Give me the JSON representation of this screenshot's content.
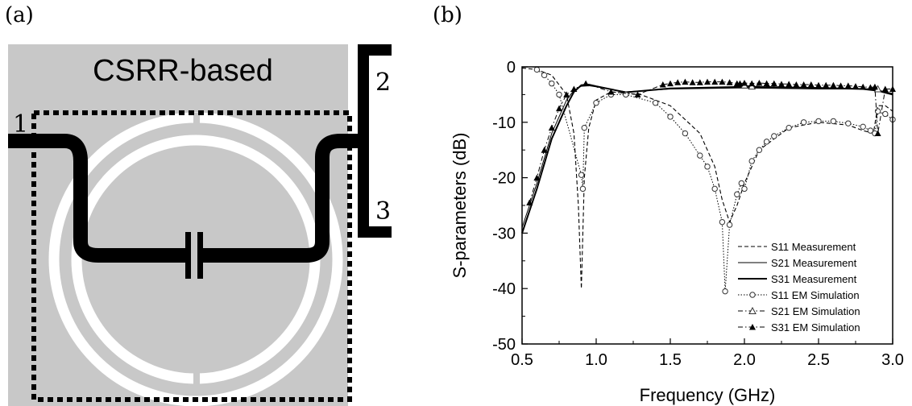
{
  "panels": {
    "a": "(a)",
    "b": "(b)"
  },
  "circuit": {
    "title": "CSRR-based",
    "ports": [
      "1",
      "2",
      "3"
    ]
  },
  "colors": {
    "substrate": "#c8c8c8",
    "line": "#000000",
    "ring": "#ffffff"
  },
  "chart_data": {
    "type": "line",
    "xlabel": "Frequency (GHz)",
    "ylabel": "S-parameters (dB)",
    "xlim": [
      0.5,
      3.0
    ],
    "ylim": [
      -50,
      0
    ],
    "xticks": [
      "0.5",
      "1.0",
      "1.5",
      "2.0",
      "2.5",
      "3.0"
    ],
    "yticks": [
      "0",
      "-10",
      "-20",
      "-30",
      "-40",
      "-50"
    ],
    "grid": false,
    "legend_position": "bottom-right",
    "series": [
      {
        "name": "S11 Measurement",
        "style": "dashed",
        "marker": "none",
        "x": [
          0.5,
          0.6,
          0.7,
          0.8,
          0.85,
          0.88,
          0.9,
          0.92,
          0.95,
          1.0,
          1.1,
          1.3,
          1.5,
          1.7,
          1.8,
          1.85,
          1.9,
          1.95,
          2.0,
          2.1,
          2.3,
          2.5,
          2.7,
          2.8,
          2.87,
          2.9,
          2.95,
          3.0
        ],
        "y": [
          -0.2,
          -0.5,
          -1.5,
          -5,
          -12,
          -25,
          -40,
          -20,
          -11,
          -6,
          -4.5,
          -5,
          -7,
          -12,
          -18,
          -24,
          -28,
          -25,
          -21,
          -15,
          -11,
          -10,
          -10.5,
          -11.5,
          -12,
          -7,
          -7,
          -8
        ]
      },
      {
        "name": "S21 Measurement",
        "style": "thin-solid",
        "marker": "none",
        "x": [
          0.5,
          0.6,
          0.7,
          0.8,
          0.85,
          0.9,
          0.95,
          1.0,
          1.2,
          1.5,
          2.0,
          2.5,
          2.8,
          2.9,
          3.0
        ],
        "y": [
          -29,
          -21,
          -12,
          -6,
          -4.2,
          -3.5,
          -3.4,
          -3.6,
          -4.5,
          -4.0,
          -3.8,
          -4.0,
          -4.0,
          -4.2,
          -4.8
        ]
      },
      {
        "name": "S31 Measurement",
        "style": "solid",
        "marker": "none",
        "x": [
          0.5,
          0.6,
          0.7,
          0.8,
          0.85,
          0.9,
          0.95,
          1.0,
          1.2,
          1.5,
          2.0,
          2.5,
          2.8,
          2.9,
          3.0
        ],
        "y": [
          -30,
          -22,
          -13,
          -7,
          -4.5,
          -3.3,
          -3.2,
          -3.5,
          -4.6,
          -3.9,
          -3.6,
          -3.8,
          -4.0,
          -4.3,
          -5.0
        ]
      },
      {
        "name": "S11 EM Simulation",
        "style": "dotted",
        "marker": "open-circle",
        "x": [
          0.6,
          0.65,
          0.7,
          0.75,
          0.9,
          0.91,
          0.92,
          1.0,
          1.1,
          1.2,
          1.4,
          1.5,
          1.6,
          1.7,
          1.75,
          1.8,
          1.85,
          1.87,
          1.9,
          1.95,
          1.98,
          2.0,
          2.05,
          2.1,
          2.15,
          2.2,
          2.3,
          2.4,
          2.5,
          2.6,
          2.7,
          2.8,
          2.85,
          2.88,
          2.9,
          2.95,
          3.0
        ],
        "y": [
          -0.5,
          -1.5,
          -3,
          -5,
          -19.5,
          -22,
          -11,
          -6.5,
          -5,
          -5,
          -6.5,
          -9,
          -12,
          -16,
          -18,
          -22,
          -28,
          -40.5,
          -28.5,
          -23,
          -21,
          -22,
          -17,
          -15,
          -13.5,
          -12.5,
          -11,
          -10,
          -9.8,
          -9.8,
          -10.2,
          -10.8,
          -11.5,
          -12,
          -8,
          -8.5,
          -9.5
        ]
      },
      {
        "name": "S21 EM Simulation",
        "style": "dash-dot",
        "marker": "open-triangle",
        "x": [
          2.0,
          2.05,
          2.9
        ],
        "y": [
          -3.3,
          -3.5,
          -4.0
        ]
      },
      {
        "name": "S31 EM Simulation",
        "style": "dash-dot",
        "marker": "filled-triangle",
        "x": [
          0.55,
          0.6,
          0.65,
          0.7,
          0.75,
          0.8,
          0.85,
          0.93,
          1.1,
          1.28,
          1.45,
          1.5,
          1.55,
          1.6,
          1.65,
          1.7,
          1.75,
          1.8,
          1.85,
          1.9,
          1.95,
          1.97,
          2.0,
          2.05,
          2.1,
          2.15,
          2.2,
          2.25,
          2.3,
          2.35,
          2.4,
          2.45,
          2.5,
          2.55,
          2.6,
          2.65,
          2.7,
          2.75,
          2.8,
          2.85,
          2.88,
          2.9,
          2.95,
          3.0
        ],
        "y": [
          -24.5,
          -20,
          -15,
          -11,
          -7.5,
          -5,
          -4,
          -3,
          -4.5,
          -5,
          -3.2,
          -3,
          -2.8,
          -2.7,
          -2.8,
          -2.8,
          -2.7,
          -2.7,
          -2.7,
          -2.8,
          -3,
          -3,
          -2.9,
          -3,
          -2.9,
          -3,
          -3,
          -3.1,
          -3.1,
          -3.2,
          -3.2,
          -3.2,
          -3.3,
          -3.3,
          -3.3,
          -3.4,
          -3.4,
          -3.5,
          -3.6,
          -3.7,
          -3.6,
          -12,
          -4,
          -4
        ]
      }
    ]
  }
}
